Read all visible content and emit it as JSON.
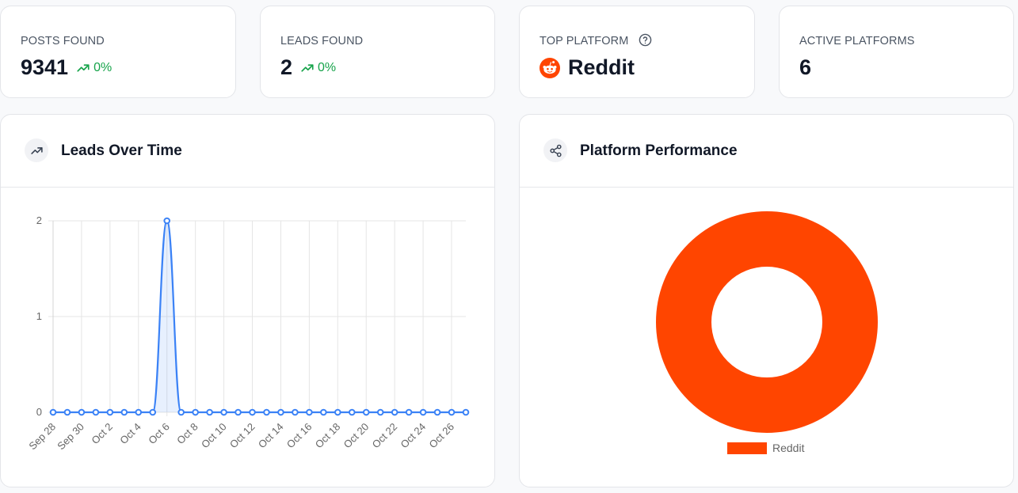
{
  "stats": {
    "posts": {
      "label": "POSTS FOUND",
      "value": "9341",
      "change": "0%"
    },
    "leads": {
      "label": "LEADS FOUND",
      "value": "2",
      "change": "0%"
    },
    "top_platform": {
      "label": "TOP PLATFORM",
      "value": "Reddit"
    },
    "active_platforms": {
      "label": "ACTIVE PLATFORMS",
      "value": "6"
    }
  },
  "leads_panel": {
    "title": "Leads Over Time"
  },
  "platform_panel": {
    "title": "Platform Performance"
  },
  "colors": {
    "line": "#3b82f6",
    "reddit": "#ff4500",
    "trend_up": "#16a34a"
  },
  "chart_data": [
    {
      "type": "line",
      "x": [
        "Sep 28",
        "Sep 29",
        "Sep 30",
        "Oct 1",
        "Oct 2",
        "Oct 3",
        "Oct 4",
        "Oct 5",
        "Oct 6",
        "Oct 7",
        "Oct 8",
        "Oct 9",
        "Oct 10",
        "Oct 11",
        "Oct 12",
        "Oct 13",
        "Oct 14",
        "Oct 15",
        "Oct 16",
        "Oct 17",
        "Oct 18",
        "Oct 19",
        "Oct 20",
        "Oct 21",
        "Oct 22",
        "Oct 23",
        "Oct 24",
        "Oct 25",
        "Oct 26",
        "Oct 27"
      ],
      "x_tick_labels": [
        "Sep 28",
        "Sep 30",
        "Oct 2",
        "Oct 4",
        "Oct 6",
        "Oct 8",
        "Oct 10",
        "Oct 12",
        "Oct 14",
        "Oct 16",
        "Oct 18",
        "Oct 20",
        "Oct 22",
        "Oct 24",
        "Oct 26"
      ],
      "series": [
        {
          "values": [
            0,
            0,
            0,
            0,
            0,
            0,
            0,
            0,
            2,
            0,
            0,
            0,
            0,
            0,
            0,
            0,
            0,
            0,
            0,
            0,
            0,
            0,
            0,
            0,
            0,
            0,
            0,
            0,
            0,
            0
          ]
        }
      ],
      "yticks": [
        "0",
        "1",
        "2"
      ],
      "ylim": [
        0,
        2
      ],
      "grid": true
    },
    {
      "type": "pie",
      "categories": [
        "Reddit"
      ],
      "values": [
        100
      ],
      "legend": "bottom"
    }
  ]
}
